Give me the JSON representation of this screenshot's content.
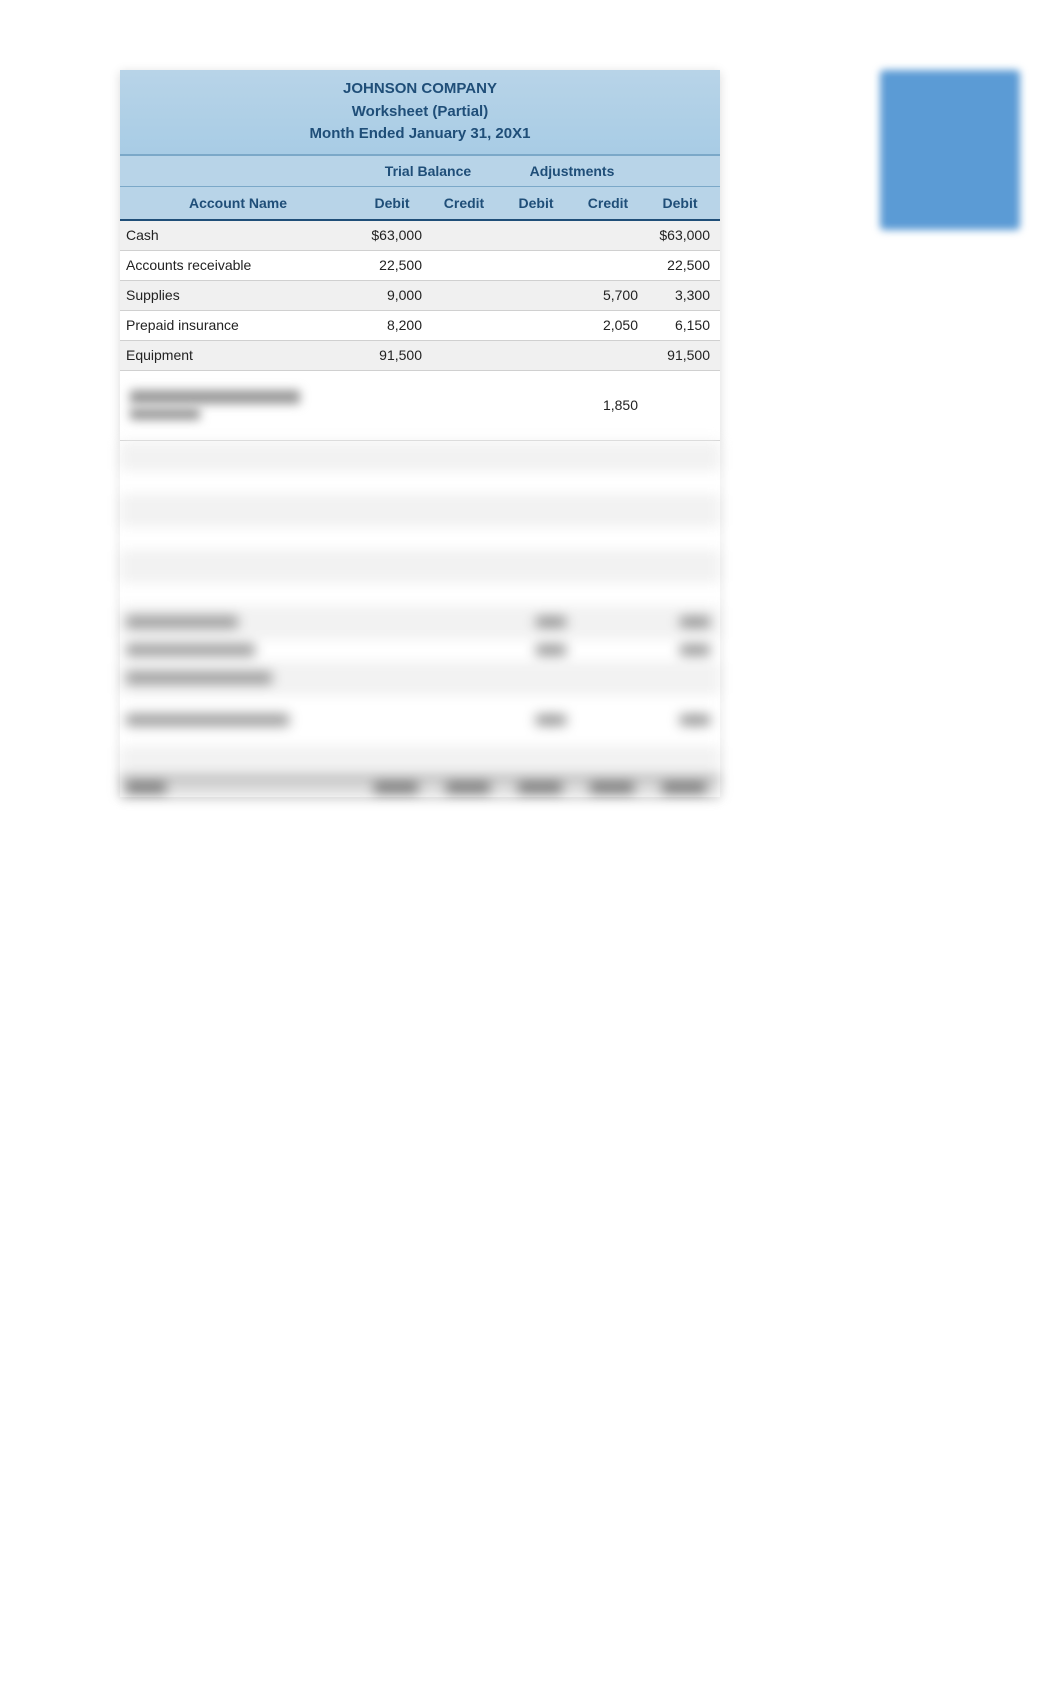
{
  "header": {
    "company": "JOHNSON COMPANY",
    "title": "Worksheet (Partial)",
    "period": "Month Ended January 31, 20X1"
  },
  "sections": {
    "trial_balance": "Trial Balance",
    "adjustments": "Adjustments"
  },
  "columns": {
    "account_name": "Account Name",
    "debit": "Debit",
    "credit": "Credit"
  },
  "rows": [
    {
      "account": "Cash",
      "tb_debit": "$63,000",
      "tb_credit": "",
      "adj_debit": "",
      "adj_credit": "",
      "final_debit": "$63,000"
    },
    {
      "account": "Accounts receivable",
      "tb_debit": "22,500",
      "tb_credit": "",
      "adj_debit": "",
      "adj_credit": "",
      "final_debit": "22,500"
    },
    {
      "account": "Supplies",
      "tb_debit": "9,000",
      "tb_credit": "",
      "adj_debit": "",
      "adj_credit": "5,700",
      "final_debit": "3,300"
    },
    {
      "account": "Prepaid insurance",
      "tb_debit": "8,200",
      "tb_credit": "",
      "adj_debit": "",
      "adj_credit": "2,050",
      "final_debit": "6,150"
    },
    {
      "account": "Equipment",
      "tb_debit": "91,500",
      "tb_credit": "",
      "adj_debit": "",
      "adj_credit": "",
      "final_debit": "91,500"
    },
    {
      "account": "",
      "tb_debit": "",
      "tb_credit": "",
      "adj_debit": "",
      "adj_credit": "1,850",
      "final_debit": "",
      "tall": true,
      "blurred_name": true
    }
  ],
  "styling": {
    "header_bg": "#b8d4e8",
    "header_text": "#1f4e78",
    "row_alt_bg": "#f0f0f0",
    "border_color": "#7ba8c8",
    "blue_tab": "#5b9bd5",
    "font_size_header": 15,
    "font_size_data": 14,
    "account_col_width": 236,
    "num_col_width": 72,
    "worksheet_width": 600
  },
  "blurred_rows_count": 11
}
